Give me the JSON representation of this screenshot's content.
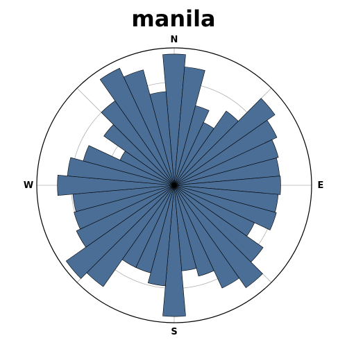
{
  "chart_data": {
    "type": "bar",
    "subtype": "polar-rose",
    "title": "manila",
    "cardinal_labels": {
      "north": "N",
      "east": "E",
      "south": "S",
      "west": "W"
    },
    "direction_zero": "north",
    "direction_rotation": "clockwise",
    "sector_count": 36,
    "sector_width_deg": 10,
    "directions_deg": [
      0,
      10,
      20,
      30,
      40,
      50,
      60,
      70,
      80,
      90,
      100,
      110,
      120,
      130,
      140,
      150,
      160,
      170,
      180,
      190,
      200,
      210,
      220,
      230,
      240,
      250,
      260,
      270,
      280,
      290,
      300,
      310,
      320,
      330,
      340,
      350
    ],
    "values": [
      191,
      173,
      120,
      101,
      132,
      179,
      165,
      157,
      154,
      155,
      152,
      154,
      129,
      158,
      182,
      165,
      137,
      125,
      191,
      147,
      132,
      132,
      180,
      192,
      157,
      151,
      148,
      170,
      156,
      137,
      87,
      125,
      150,
      188,
      174,
      137
    ],
    "rmax": 200,
    "grid": true,
    "bar_color": "#4a6e96",
    "edge_color": "#000000"
  }
}
